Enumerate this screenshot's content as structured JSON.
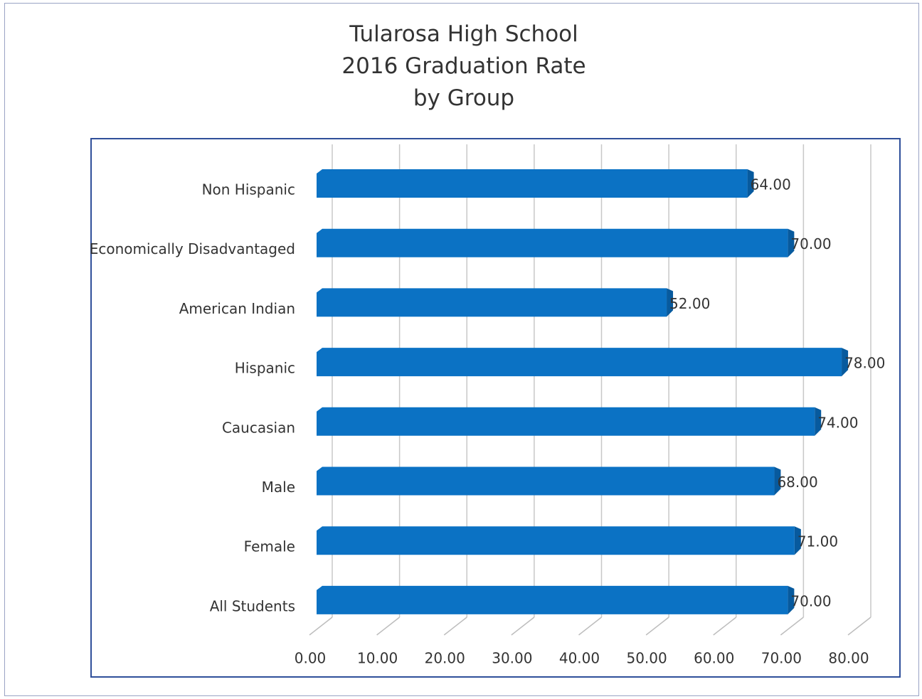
{
  "chart_data": {
    "type": "bar",
    "orientation": "horizontal",
    "title": "Tularosa High School\n2016 Graduation Rate\nby Group",
    "categories": [
      "Non Hispanic",
      "Economically Disadvantaged",
      "American Indian",
      "Hispanic",
      "Caucasian",
      "Male",
      "Female",
      "All Students"
    ],
    "values": [
      64,
      70,
      52,
      78,
      74,
      68,
      71,
      70
    ],
    "value_labels": [
      "64.00",
      "70.00",
      "52.00",
      "78.00",
      "74.00",
      "68.00",
      "71.00",
      "70.00"
    ],
    "color": "#0b72c4",
    "xlim": [
      0,
      80
    ],
    "xticks": [
      {
        "value": 0,
        "label": "0.00"
      },
      {
        "value": 10,
        "label": "10.00"
      },
      {
        "value": 20,
        "label": "20.00"
      },
      {
        "value": 30,
        "label": "30.00"
      },
      {
        "value": 40,
        "label": "40.00"
      },
      {
        "value": 50,
        "label": "50.00"
      },
      {
        "value": 60,
        "label": "60.00"
      },
      {
        "value": 70,
        "label": "70.00"
      },
      {
        "value": 80,
        "label": "80.00"
      }
    ],
    "grid": true
  }
}
